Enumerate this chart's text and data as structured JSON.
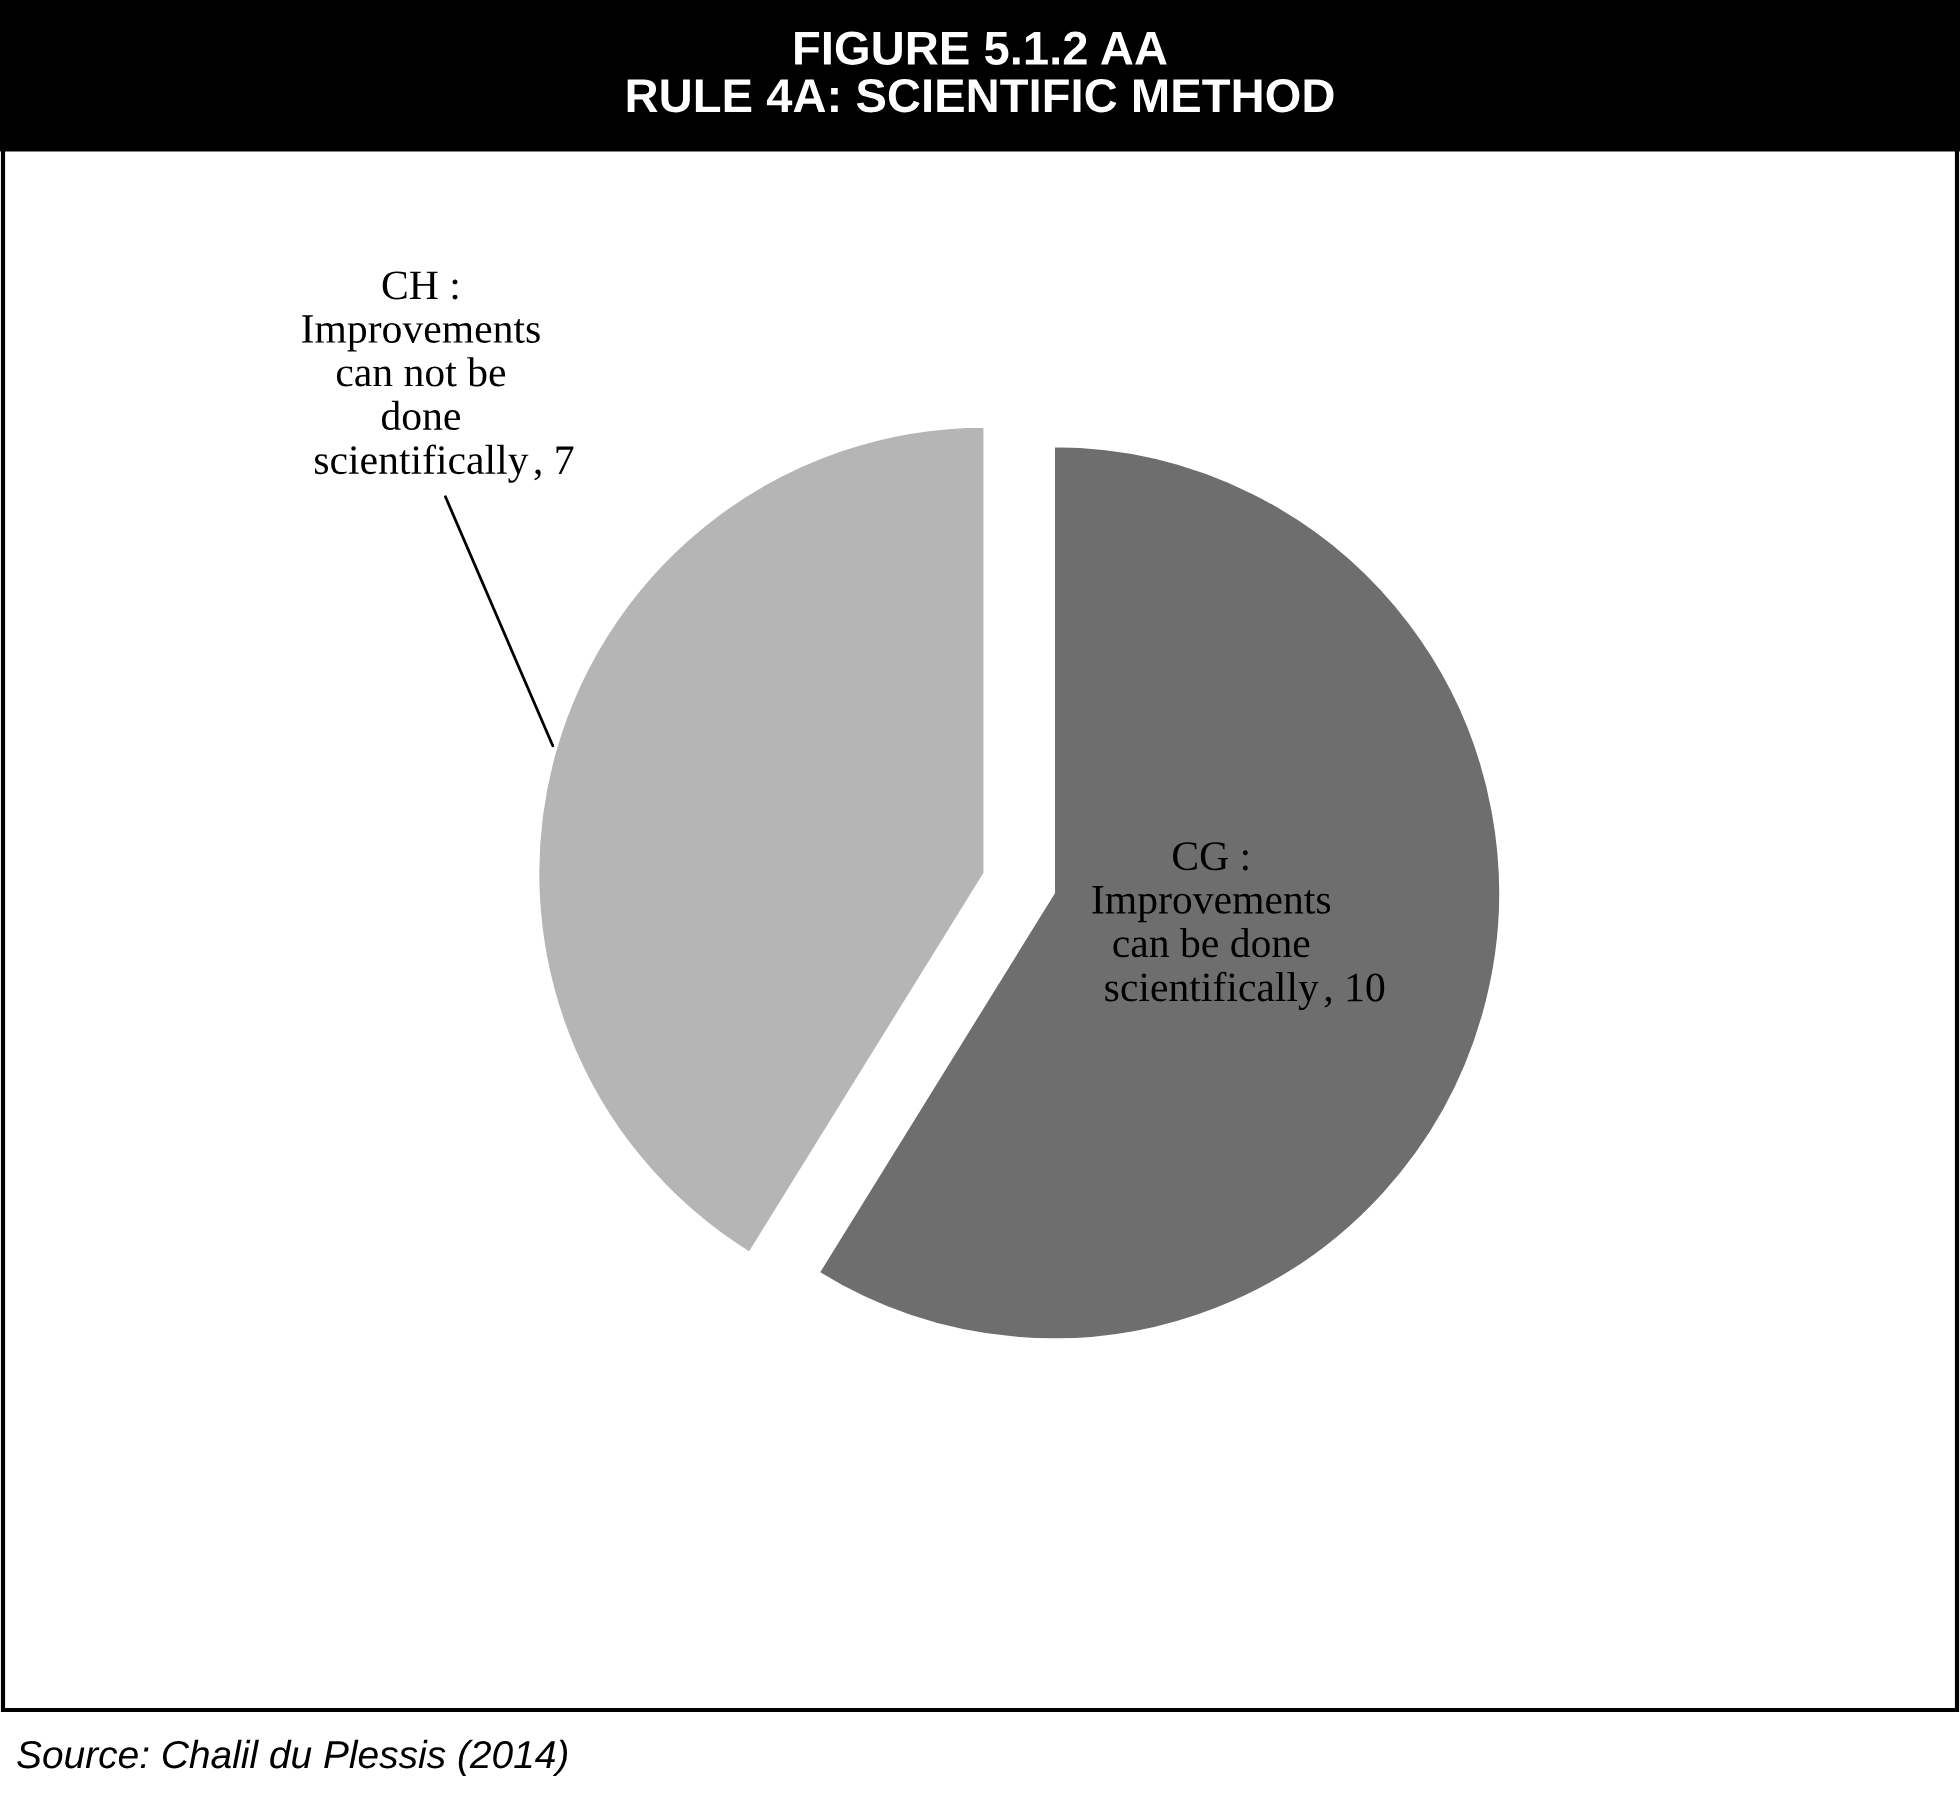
{
  "chart_data": {
    "type": "pie",
    "title": "FIGURE 5.1.2 AA\nRULE 4A: SCIENTIFIC METHOD",
    "categories": [
      "CG :\nImprovements\ncan be done\nscientifically",
      "CH :\nImprovements\ncan not be\ndone\nscientifically"
    ],
    "values": [
      10,
      7
    ],
    "colors": [
      "#6e6e6e",
      "#b5b5b5"
    ],
    "value_labels": [
      ", 10",
      ", 7"
    ],
    "annotations": [
      "Source: Chalil du Plessis (2014)"
    ]
  }
}
